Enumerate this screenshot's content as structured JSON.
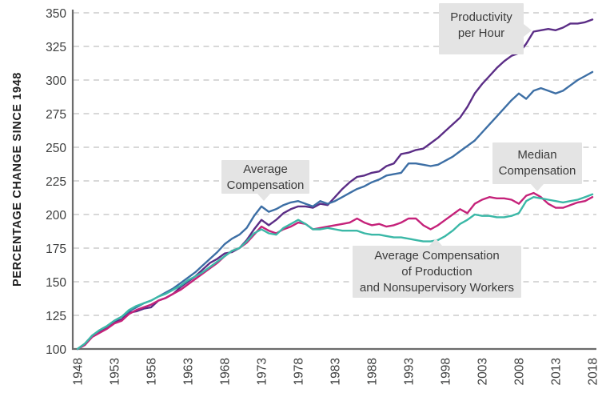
{
  "chart_data": {
    "type": "line",
    "title": "",
    "xlabel": "",
    "ylabel": "PERCENTAGE CHANGE SINCE 1948",
    "xlim": [
      1948,
      2018
    ],
    "ylim": [
      100,
      350
    ],
    "grid": "horizontal-dashed",
    "y_ticks": [
      100,
      125,
      150,
      175,
      200,
      225,
      250,
      275,
      300,
      325,
      350
    ],
    "x_ticks": [
      1948,
      1953,
      1958,
      1963,
      1968,
      1973,
      1978,
      1983,
      1988,
      1993,
      1998,
      2003,
      2008,
      2013,
      2018
    ],
    "years": [
      1948,
      1949,
      1950,
      1951,
      1952,
      1953,
      1954,
      1955,
      1956,
      1957,
      1958,
      1959,
      1960,
      1961,
      1962,
      1963,
      1964,
      1965,
      1966,
      1967,
      1968,
      1969,
      1970,
      1971,
      1972,
      1973,
      1974,
      1975,
      1976,
      1977,
      1978,
      1979,
      1980,
      1981,
      1982,
      1983,
      1984,
      1985,
      1986,
      1987,
      1988,
      1989,
      1990,
      1991,
      1992,
      1993,
      1994,
      1995,
      1996,
      1997,
      1998,
      1999,
      2000,
      2001,
      2002,
      2003,
      2004,
      2005,
      2006,
      2007,
      2008,
      2009,
      2010,
      2011,
      2012,
      2013,
      2014,
      2015,
      2016,
      2017,
      2018
    ],
    "series": [
      {
        "id": "productivity",
        "name": "Productivity per Hour",
        "color": "#5b2d86",
        "values": [
          100,
          103,
          110,
          113,
          116,
          120,
          122,
          127,
          128,
          130,
          131,
          136,
          138,
          141,
          146,
          150,
          154,
          159,
          164,
          167,
          171,
          172,
          175,
          181,
          189,
          196,
          192,
          196,
          201,
          204,
          206,
          206,
          205,
          208,
          207,
          213,
          219,
          224,
          228,
          229,
          231,
          232,
          236,
          238,
          245,
          246,
          248,
          249,
          253,
          257,
          262,
          267,
          272,
          280,
          290,
          297,
          303,
          309,
          314,
          318,
          320,
          327,
          336,
          337,
          338,
          337,
          339,
          342,
          342,
          343,
          345
        ]
      },
      {
        "id": "average-compensation",
        "name": "Average Compensation",
        "color": "#3d6fa5",
        "values": [
          100,
          104,
          110,
          114,
          117,
          121,
          124,
          128,
          131,
          134,
          136,
          139,
          142,
          145,
          149,
          153,
          157,
          162,
          167,
          172,
          178,
          182,
          185,
          190,
          199,
          206,
          202,
          204,
          207,
          209,
          210,
          208,
          206,
          210,
          208,
          210,
          213,
          216,
          219,
          221,
          224,
          226,
          229,
          230,
          231,
          238,
          238,
          237,
          236,
          237,
          240,
          243,
          247,
          251,
          255,
          261,
          267,
          273,
          279,
          285,
          290,
          286,
          292,
          294,
          292,
          290,
          292,
          296,
          300,
          303,
          306
        ]
      },
      {
        "id": "median-compensation",
        "name": "Median Compensation",
        "color": "#c5227a",
        "values": [
          100,
          103,
          109,
          112,
          115,
          119,
          121,
          126,
          129,
          131,
          133,
          136,
          138,
          141,
          144,
          148,
          152,
          156,
          160,
          164,
          169,
          173,
          175,
          179,
          185,
          191,
          188,
          186,
          189,
          191,
          194,
          193,
          189,
          190,
          191,
          192,
          193,
          194,
          197,
          194,
          192,
          193,
          191,
          192,
          194,
          197,
          197,
          192,
          189,
          192,
          196,
          200,
          204,
          201,
          208,
          211,
          213,
          212,
          212,
          211,
          208,
          214,
          216,
          213,
          208,
          205,
          205,
          207,
          209,
          210,
          213
        ]
      },
      {
        "id": "production-nonsupervisory",
        "name": "Average Compensation of Production and Nonsupervisory Workers",
        "color": "#3bb8a7",
        "values": [
          100,
          104,
          110,
          114,
          117,
          121,
          124,
          129,
          132,
          134,
          136,
          139,
          141,
          144,
          147,
          151,
          154,
          157,
          161,
          165,
          169,
          173,
          175,
          180,
          186,
          189,
          186,
          185,
          190,
          193,
          196,
          193,
          189,
          189,
          190,
          189,
          188,
          188,
          188,
          186,
          185,
          185,
          184,
          183,
          183,
          182,
          181,
          180,
          180,
          181,
          184,
          188,
          193,
          196,
          200,
          199,
          199,
          198,
          198,
          199,
          201,
          210,
          213,
          212,
          211,
          210,
          209,
          210,
          211,
          213,
          215
        ]
      }
    ],
    "annotation_bg": "#e4e4e4"
  },
  "annotations": {
    "productivity": {
      "lines": [
        "Productivity",
        "per Hour"
      ]
    },
    "average_compensation": {
      "lines": [
        "Average",
        "Compensation"
      ]
    },
    "median_compensation": {
      "lines": [
        "Median",
        "Compensation"
      ]
    },
    "production_workers": {
      "lines": [
        "Average Compensation",
        "of Production",
        "and Nonsupervisory Workers"
      ]
    }
  }
}
